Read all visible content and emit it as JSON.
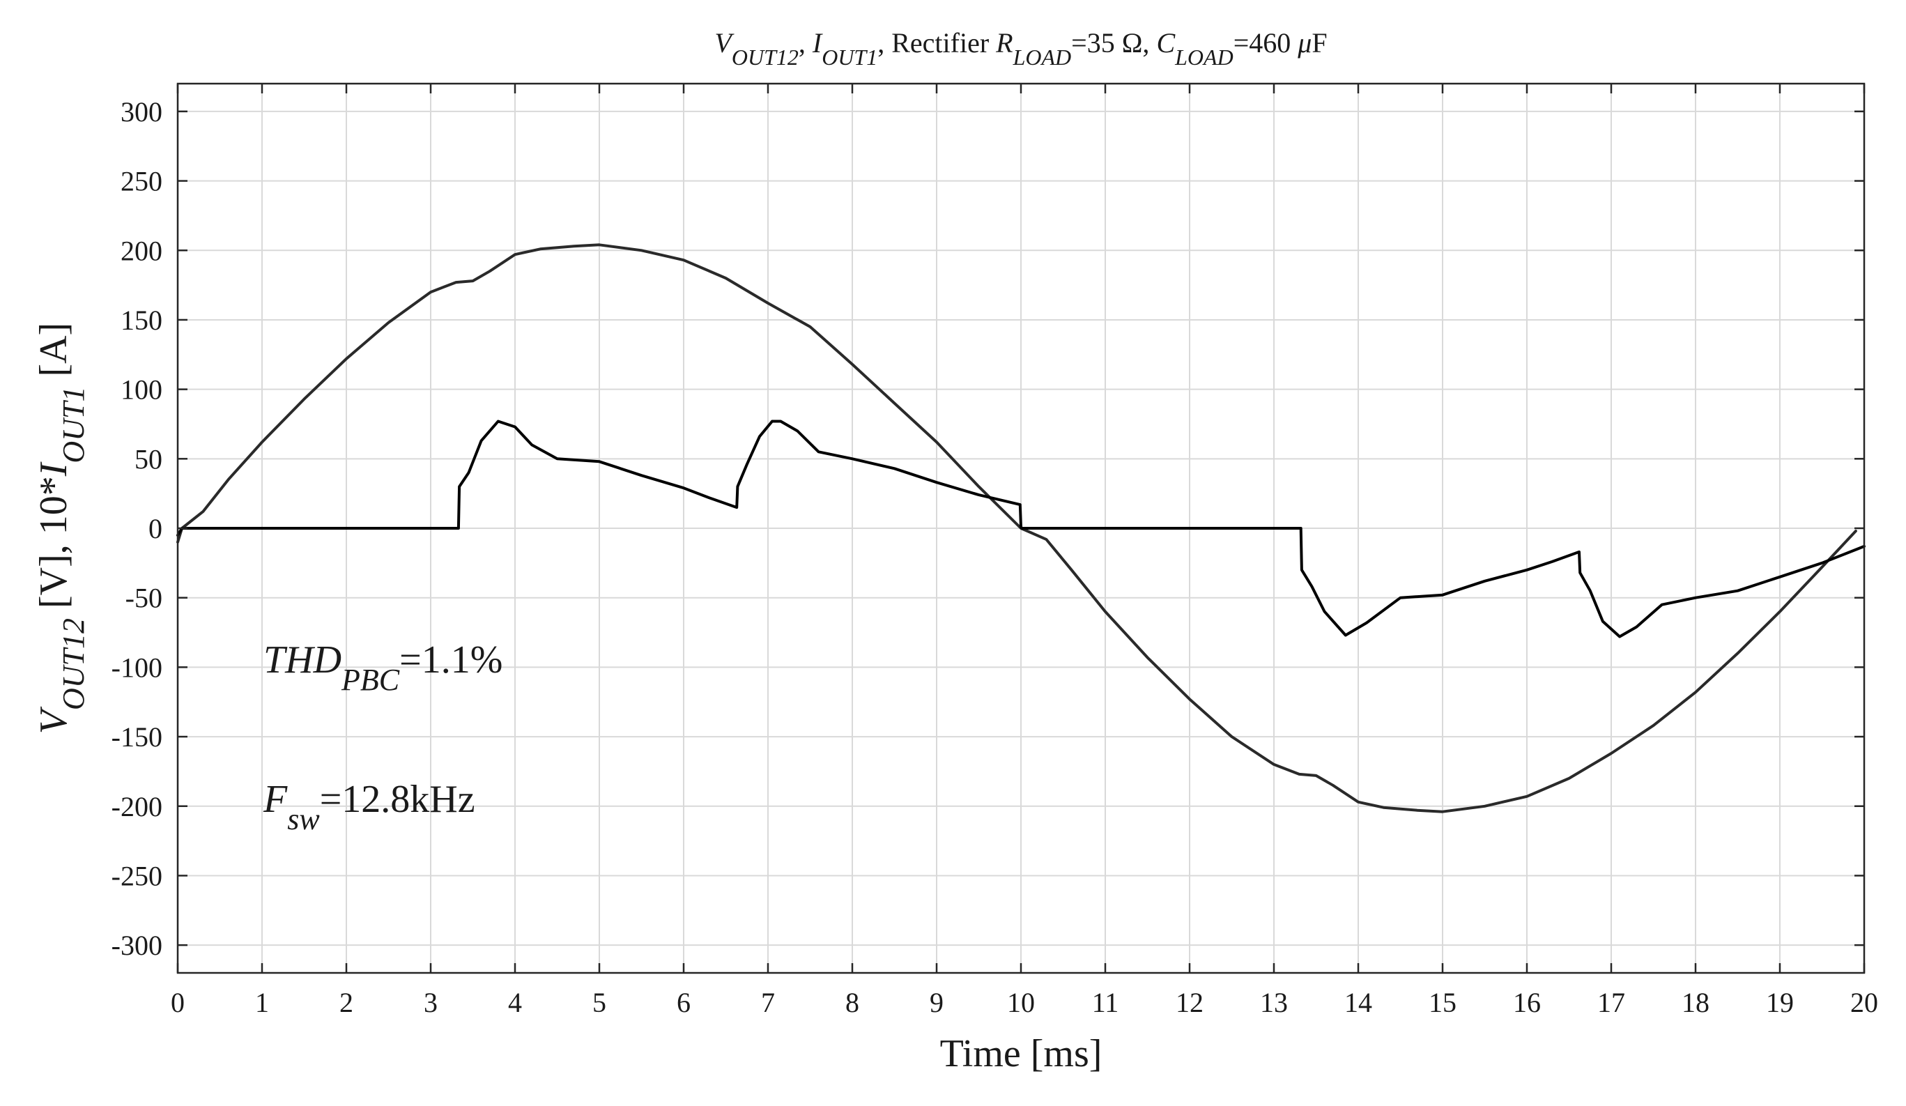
{
  "chart_data": {
    "type": "line",
    "title": {
      "parts": [
        {
          "text": "V",
          "style": "italic"
        },
        {
          "text": "OUT12",
          "style": "italic-sub"
        },
        {
          "text": ", ",
          "style": "normal"
        },
        {
          "text": "I",
          "style": "italic"
        },
        {
          "text": "OUT1",
          "style": "italic-sub"
        },
        {
          "text": ", Rectifier ",
          "style": "normal"
        },
        {
          "text": "R",
          "style": "italic"
        },
        {
          "text": "LOAD",
          "style": "italic-sub"
        },
        {
          "text": "=35 Ω, ",
          "style": "normal"
        },
        {
          "text": "C",
          "style": "italic"
        },
        {
          "text": "LOAD",
          "style": "italic-sub"
        },
        {
          "text": "=460 ",
          "style": "normal"
        },
        {
          "text": "μ",
          "style": "italic"
        },
        {
          "text": "F",
          "style": "normal"
        }
      ]
    },
    "xlabel": "Time [ms]",
    "ylabel": {
      "parts": [
        {
          "text": "V",
          "style": "italic"
        },
        {
          "text": "OUT12",
          "style": "italic-sub"
        },
        {
          "text": " [V], 10*",
          "style": "normal"
        },
        {
          "text": "I",
          "style": "italic"
        },
        {
          "text": "OUT1",
          "style": "italic-sub"
        },
        {
          "text": " [A]",
          "style": "normal"
        }
      ]
    },
    "xlim": [
      0,
      20
    ],
    "ylim": [
      -320,
      320
    ],
    "xticks": [
      0,
      1,
      2,
      3,
      4,
      5,
      6,
      7,
      8,
      9,
      10,
      11,
      12,
      13,
      14,
      15,
      16,
      17,
      18,
      19,
      20
    ],
    "yticks": [
      300,
      250,
      200,
      150,
      100,
      50,
      0,
      -50,
      -100,
      -150,
      -200,
      -250,
      -300
    ],
    "grid": true,
    "legend": "none",
    "annotations": [
      {
        "id": "thd",
        "parts": [
          {
            "text": "THD",
            "style": "italic"
          },
          {
            "text": "PBC",
            "style": "italic-sub"
          },
          {
            "text": "=1.1%",
            "style": "normal"
          }
        ]
      },
      {
        "id": "fsw",
        "parts": [
          {
            "text": "F",
            "style": "italic"
          },
          {
            "text": "sw",
            "style": "italic-sub"
          },
          {
            "text": "=12.8kHz",
            "style": "normal"
          }
        ]
      }
    ],
    "series": [
      {
        "color": "#2a2a2a",
        "x": [
          0,
          0.05,
          0.3,
          0.6,
          1,
          1.5,
          2,
          2.5,
          3,
          3.3,
          3.5,
          3.7,
          4,
          4.3,
          4.7,
          5,
          5.5,
          6,
          6.5,
          7,
          7.5,
          8,
          8.5,
          9,
          9.5,
          10,
          10.3,
          10.6,
          11,
          11.5,
          12,
          12.5,
          13,
          13.3,
          13.5,
          13.7,
          14,
          14.3,
          14.7,
          15,
          15.5,
          16,
          16.5,
          17,
          17.5,
          18,
          18.5,
          19,
          19.5,
          19.9
        ],
        "y": [
          -10,
          0,
          12,
          35,
          62,
          93,
          122,
          148,
          170,
          177,
          178,
          185,
          197,
          201,
          203,
          204,
          200,
          193,
          180,
          162,
          145,
          118,
          90,
          62,
          30,
          0,
          -8,
          -30,
          -60,
          -93,
          -123,
          -150,
          -170,
          -177,
          -178,
          -185,
          -197,
          -201,
          -203,
          -204,
          -200,
          -193,
          -180,
          -162,
          -142,
          -118,
          -90,
          -60,
          -28,
          -2
        ]
      },
      {
        "color": "#000000",
        "x": [
          0,
          0.05,
          3.33,
          3.34,
          3.45,
          3.6,
          3.8,
          4,
          4.2,
          4.5,
          5,
          5.5,
          6,
          6.3,
          6.63,
          6.64,
          6.75,
          6.9,
          7.05,
          7.15,
          7.35,
          7.6,
          8,
          8.5,
          9,
          9.5,
          9.99,
          10,
          10.01,
          13.32,
          13.33,
          13.45,
          13.6,
          13.85,
          14.1,
          14.5,
          15,
          15.5,
          16,
          16.3,
          16.62,
          16.63,
          16.75,
          16.9,
          17.1,
          17.3,
          17.6,
          18,
          18.5,
          19,
          19.5,
          20
        ],
        "y": [
          -5,
          0,
          0,
          30,
          40,
          63,
          77,
          73,
          60,
          50,
          48,
          38,
          29,
          22,
          15,
          30,
          46,
          66,
          77,
          77,
          70,
          55,
          50,
          43,
          33,
          24,
          17,
          1,
          0,
          0,
          -30,
          -42,
          -60,
          -77,
          -68,
          -50,
          -48,
          -38,
          -30,
          -24,
          -17,
          -32,
          -45,
          -67,
          -78,
          -71,
          -55,
          -50,
          -45,
          -35,
          -25,
          -13
        ]
      }
    ]
  }
}
